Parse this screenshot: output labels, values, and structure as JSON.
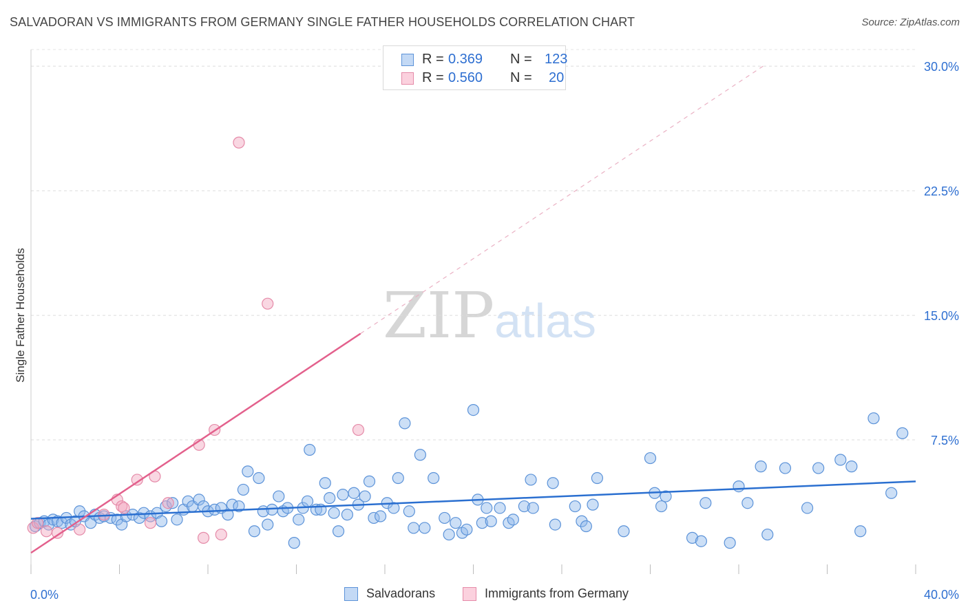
{
  "title": "SALVADORAN VS IMMIGRANTS FROM GERMANY SINGLE FATHER HOUSEHOLDS CORRELATION CHART",
  "source": "Source: ZipAtlas.com",
  "watermark": {
    "zip": "ZIP",
    "atlas": "atlas"
  },
  "legend": {
    "salvadorans": {
      "r_label": "R =",
      "r_value": "0.369",
      "n_label": "N =",
      "n_value": "123",
      "color": "#8db7ea"
    },
    "germany": {
      "r_label": "R =",
      "r_value": "0.560",
      "n_label": "N =",
      "n_value": "20",
      "color": "#f1a7be"
    }
  },
  "chart_data": {
    "type": "scatter",
    "title": "SALVADORAN VS IMMIGRANTS FROM GERMANY SINGLE FATHER HOUSEHOLDS CORRELATION CHART",
    "xlabel": "",
    "ylabel": "Single Father Households",
    "xlim": [
      0,
      40
    ],
    "ylim": [
      0,
      31
    ],
    "x_tick_labels": [
      "0.0%",
      "40.0%"
    ],
    "y_ticks": [
      7.5,
      15.0,
      22.5,
      30.0
    ],
    "y_tick_labels": [
      "7.5%",
      "15.0%",
      "22.5%",
      "30.0%"
    ],
    "grid": true,
    "series": [
      {
        "name": "Salvadorans",
        "color": "#8db7ea",
        "stroke": "#5b92d8",
        "line_color": "#2a6fd0",
        "trend": {
          "x": [
            0,
            40
          ],
          "y": [
            2.75,
            5.0
          ],
          "style": "solid"
        },
        "points": [
          [
            0.2,
            2.3
          ],
          [
            0.4,
            2.5
          ],
          [
            0.6,
            2.6
          ],
          [
            0.8,
            2.4
          ],
          [
            1.0,
            2.7
          ],
          [
            1.2,
            2.6
          ],
          [
            1.4,
            2.5
          ],
          [
            1.6,
            2.8
          ],
          [
            1.8,
            2.4
          ],
          [
            2.0,
            2.6
          ],
          [
            2.2,
            3.2
          ],
          [
            2.4,
            2.9
          ],
          [
            2.7,
            2.5
          ],
          [
            2.9,
            3.0
          ],
          [
            3.1,
            2.8
          ],
          [
            3.3,
            2.9
          ],
          [
            3.6,
            2.8
          ],
          [
            3.9,
            2.7
          ],
          [
            4.1,
            2.4
          ],
          [
            4.3,
            2.9
          ],
          [
            4.6,
            3.0
          ],
          [
            4.9,
            2.8
          ],
          [
            5.1,
            3.1
          ],
          [
            5.4,
            2.9
          ],
          [
            5.7,
            3.1
          ],
          [
            5.9,
            2.6
          ],
          [
            6.1,
            3.5
          ],
          [
            6.4,
            3.7
          ],
          [
            6.6,
            2.7
          ],
          [
            6.9,
            3.3
          ],
          [
            7.1,
            3.8
          ],
          [
            7.3,
            3.5
          ],
          [
            7.6,
            3.9
          ],
          [
            7.8,
            3.5
          ],
          [
            8.0,
            3.2
          ],
          [
            8.3,
            3.3
          ],
          [
            8.6,
            3.4
          ],
          [
            8.9,
            3.0
          ],
          [
            9.1,
            3.6
          ],
          [
            9.4,
            3.5
          ],
          [
            9.6,
            4.5
          ],
          [
            9.8,
            5.6
          ],
          [
            10.1,
            2.0
          ],
          [
            10.3,
            5.2
          ],
          [
            10.5,
            3.2
          ],
          [
            10.7,
            2.4
          ],
          [
            10.9,
            3.3
          ],
          [
            11.2,
            4.1
          ],
          [
            11.4,
            3.2
          ],
          [
            11.6,
            3.4
          ],
          [
            11.9,
            1.3
          ],
          [
            12.1,
            2.7
          ],
          [
            12.3,
            3.4
          ],
          [
            12.5,
            3.8
          ],
          [
            12.6,
            6.9
          ],
          [
            12.9,
            3.3
          ],
          [
            13.1,
            3.3
          ],
          [
            13.3,
            4.9
          ],
          [
            13.5,
            4.0
          ],
          [
            13.7,
            3.1
          ],
          [
            13.9,
            2.0
          ],
          [
            14.1,
            4.2
          ],
          [
            14.3,
            3.0
          ],
          [
            14.6,
            4.3
          ],
          [
            14.8,
            3.6
          ],
          [
            15.1,
            4.1
          ],
          [
            15.3,
            5.0
          ],
          [
            15.5,
            2.8
          ],
          [
            15.8,
            2.9
          ],
          [
            16.1,
            3.7
          ],
          [
            16.4,
            3.4
          ],
          [
            16.6,
            5.2
          ],
          [
            16.9,
            8.5
          ],
          [
            17.1,
            3.2
          ],
          [
            17.3,
            2.2
          ],
          [
            17.6,
            6.6
          ],
          [
            17.8,
            2.2
          ],
          [
            18.2,
            5.2
          ],
          [
            18.7,
            2.8
          ],
          [
            18.9,
            1.8
          ],
          [
            19.2,
            2.5
          ],
          [
            19.5,
            1.9
          ],
          [
            19.7,
            2.1
          ],
          [
            20.0,
            9.3
          ],
          [
            20.2,
            3.9
          ],
          [
            20.4,
            2.5
          ],
          [
            20.6,
            3.4
          ],
          [
            20.8,
            2.6
          ],
          [
            21.2,
            3.4
          ],
          [
            21.6,
            2.5
          ],
          [
            21.8,
            2.7
          ],
          [
            22.3,
            3.5
          ],
          [
            22.6,
            5.1
          ],
          [
            22.7,
            3.4
          ],
          [
            23.6,
            4.9
          ],
          [
            23.7,
            2.4
          ],
          [
            24.6,
            3.5
          ],
          [
            24.9,
            2.6
          ],
          [
            25.1,
            2.3
          ],
          [
            25.4,
            3.6
          ],
          [
            25.6,
            5.2
          ],
          [
            26.8,
            2.0
          ],
          [
            28.0,
            6.4
          ],
          [
            28.2,
            4.3
          ],
          [
            28.5,
            3.5
          ],
          [
            28.7,
            4.1
          ],
          [
            29.9,
            1.6
          ],
          [
            30.3,
            1.4
          ],
          [
            30.5,
            3.7
          ],
          [
            31.6,
            1.3
          ],
          [
            32.0,
            4.7
          ],
          [
            32.4,
            3.7
          ],
          [
            33.0,
            5.9
          ],
          [
            33.3,
            1.8
          ],
          [
            34.1,
            5.8
          ],
          [
            35.1,
            3.4
          ],
          [
            35.6,
            5.8
          ],
          [
            36.6,
            6.3
          ],
          [
            37.1,
            5.9
          ],
          [
            37.5,
            2.0
          ],
          [
            38.1,
            8.8
          ],
          [
            38.9,
            4.3
          ],
          [
            39.4,
            7.9
          ]
        ]
      },
      {
        "name": "Immigrants from Germany",
        "color": "#f1a7be",
        "stroke": "#e58aa8",
        "line_color": "#e3608c",
        "trend": {
          "x": [
            0,
            14.9
          ],
          "y": [
            0.7,
            13.9
          ],
          "style": "solid",
          "extended_to": [
            33.1,
            30.0
          ],
          "extended_style": "dashed"
        },
        "points": [
          [
            0.1,
            2.2
          ],
          [
            0.7,
            2.0
          ],
          [
            1.2,
            1.9
          ],
          [
            2.2,
            2.1
          ],
          [
            3.3,
            3.0
          ],
          [
            3.9,
            3.9
          ],
          [
            4.1,
            3.5
          ],
          [
            4.2,
            3.4
          ],
          [
            4.8,
            5.1
          ],
          [
            5.4,
            2.5
          ],
          [
            5.6,
            5.3
          ],
          [
            6.2,
            3.7
          ],
          [
            7.6,
            7.2
          ],
          [
            7.8,
            1.6
          ],
          [
            8.3,
            8.1
          ],
          [
            8.6,
            1.8
          ],
          [
            9.4,
            25.4
          ],
          [
            10.7,
            15.7
          ],
          [
            14.8,
            8.1
          ],
          [
            0.3,
            2.5
          ]
        ]
      }
    ]
  },
  "bottom_legend": {
    "item1": "Salvadorans",
    "item2": "Immigrants from Germany"
  }
}
